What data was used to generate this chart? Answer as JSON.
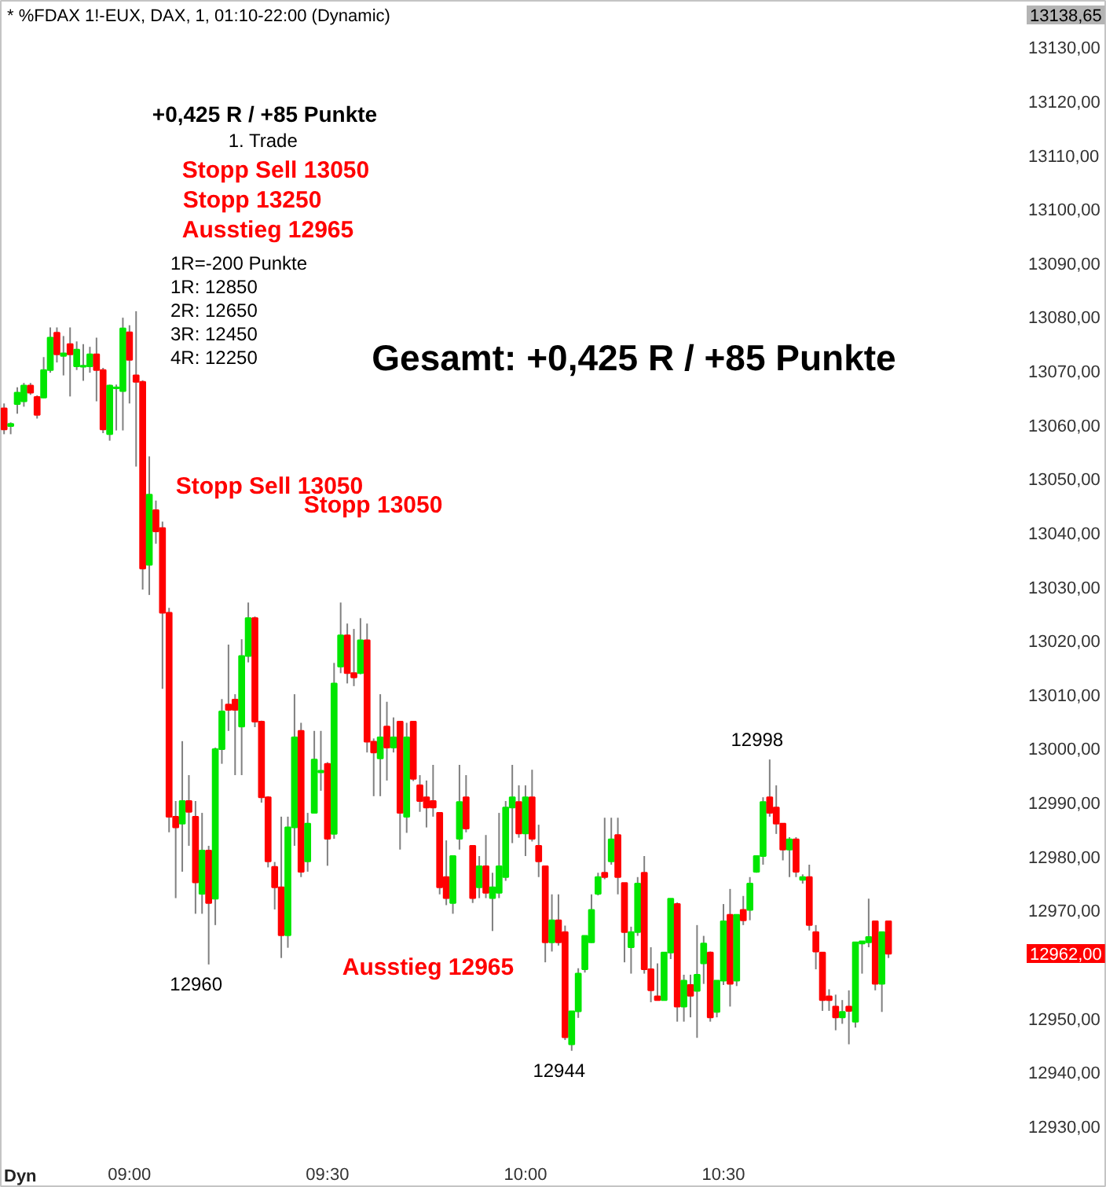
{
  "chart_data": {
    "type": "candlestick",
    "title": "* %FDAX 1!-EUX, DAX, 1, 01:10-22:00 (Dynamic)",
    "x": [
      8.6833,
      8.7,
      8.7167,
      8.7333,
      8.75,
      8.7667,
      8.7833,
      8.8,
      8.8167,
      8.8333,
      8.85,
      8.8667,
      8.8833,
      8.9,
      8.9167,
      8.9333,
      8.95,
      8.9667,
      8.9833,
      9,
      9.0167,
      9.0333,
      9.05,
      9.0667,
      9.0833,
      9.1,
      9.1167,
      9.1333,
      9.15,
      9.1667,
      9.1833,
      9.2,
      9.2167,
      9.2333,
      9.25,
      9.2667,
      9.2833,
      9.3,
      9.3167,
      9.3333,
      9.35,
      9.3667,
      9.3833,
      9.4,
      9.4167,
      9.4333,
      9.45,
      9.4667,
      9.4833,
      9.5,
      9.5167,
      9.5333,
      9.55,
      9.5667,
      9.5833,
      9.6,
      9.6167,
      9.6333,
      9.65,
      9.6667,
      9.6833,
      9.7,
      9.7167,
      9.7333,
      9.75,
      9.7667,
      9.7833,
      9.8,
      9.8167,
      9.8333,
      9.85,
      9.8667,
      9.8833,
      9.9,
      9.9167,
      9.9333,
      9.95,
      9.9667,
      9.9833,
      10,
      10.0167,
      10.0333,
      10.05,
      10.0667,
      10.0833,
      10.1,
      10.1167,
      10.1333,
      10.15,
      10.1667,
      10.1833,
      10.2,
      10.2167,
      10.2333,
      10.25,
      10.2667,
      10.2833,
      10.3,
      10.3167,
      10.3333,
      10.35,
      10.3667,
      10.3833,
      10.4,
      10.4167,
      10.4333,
      10.45,
      10.4667,
      10.4833,
      10.5,
      10.5167,
      10.5333,
      10.55,
      10.5667,
      10.5833,
      10.6,
      10.6167,
      10.6333,
      10.65,
      10.6667,
      10.6833,
      10.7,
      10.7167,
      10.7333,
      10.75,
      10.7667,
      10.7833,
      10.8,
      10.8167,
      10.8333,
      10.85,
      10.8667,
      10.8833,
      10.9,
      10.9167
    ],
    "ohlc": [
      [
        13063.1,
        13064.0,
        13058.3,
        13059.2
      ],
      [
        13059.8,
        13060.5,
        13058.3,
        13060.2
      ],
      [
        13063.9,
        13067.0,
        13062.1,
        13066.0
      ],
      [
        13064.4,
        13067.8,
        13063.4,
        13067.3
      ],
      [
        13067.3,
        13067.8,
        13065.6,
        13066.0
      ],
      [
        13065.2,
        13065.5,
        13061.2,
        13061.9
      ],
      [
        13065.1,
        13072.6,
        13065.0,
        13070.2
      ],
      [
        13070.2,
        13078.1,
        13069.7,
        13076.2
      ],
      [
        13077.1,
        13078.1,
        13071.6,
        13073.1
      ],
      [
        13072.8,
        13076.5,
        13069.2,
        13073.3
      ],
      [
        13075.0,
        13078.1,
        13065.3,
        13073.1
      ],
      [
        13070.9,
        13075.5,
        13070.2,
        13074.0
      ],
      [
        13070.8,
        13075.0,
        13068.2,
        13071.0
      ],
      [
        13070.9,
        13074.5,
        13069.7,
        13073.1
      ],
      [
        13073.1,
        13076.2,
        13064.4,
        13070.2
      ],
      [
        13070.2,
        13070.6,
        13058.5,
        13059.2
      ],
      [
        13058.3,
        13067.5,
        13057.1,
        13067.3
      ],
      [
        13066.8,
        13067.5,
        13059.0,
        13067.0
      ],
      [
        13066.3,
        13079.9,
        13059.0,
        13077.9
      ],
      [
        13077.2,
        13078.5,
        13064.0,
        13072.1
      ],
      [
        13069.2,
        13081.1,
        13052.3,
        13068.0
      ],
      [
        13068.0,
        13068.3,
        13029.5,
        13033.4
      ],
      [
        13034.1,
        13054.2,
        13028.5,
        13047.1
      ],
      [
        13044.2,
        13046.0,
        13038.0,
        13040.3
      ],
      [
        13040.9,
        13042.1,
        13011.1,
        13025.2
      ],
      [
        13025.2,
        13026.1,
        12984.5,
        12987.4
      ],
      [
        12987.4,
        12990.3,
        12972.3,
        12985.4
      ],
      [
        12986.1,
        13001.4,
        12977.2,
        12990.3
      ],
      [
        12990.3,
        12995.1,
        12982.0,
        12988.3
      ],
      [
        12987.4,
        12990.3,
        12969.4,
        12975.2
      ],
      [
        12973.1,
        12988.1,
        12969.4,
        12981.1
      ],
      [
        12981.1,
        12982.0,
        12960.0,
        12971.4
      ],
      [
        12972.2,
        13000.2,
        12967.3,
        12999.9
      ],
      [
        12999.9,
        13009.2,
        12997.2,
        13006.9
      ],
      [
        13008.2,
        13019.3,
        13003.3,
        13007.2
      ],
      [
        13009.1,
        13010.1,
        12995.1,
        13007.2
      ],
      [
        13004.1,
        13020.3,
        12995.1,
        13017.2
      ],
      [
        13017.2,
        13027.1,
        13016.0,
        13024.2
      ],
      [
        13024.2,
        13024.5,
        13004.0,
        13005.0
      ],
      [
        13005.0,
        13005.2,
        12990.0,
        12991.0
      ],
      [
        12991.0,
        12991.2,
        12978.0,
        12979.1
      ],
      [
        12978.1,
        12979.0,
        12970.2,
        12974.3
      ],
      [
        12974.3,
        12987.4,
        12961.2,
        12965.4
      ],
      [
        12965.4,
        12987.4,
        12963.1,
        12985.4
      ],
      [
        12985.4,
        13010.1,
        12982.0,
        13002.1
      ],
      [
        13003.3,
        13004.8,
        12976.2,
        12977.2
      ],
      [
        12979.1,
        12988.1,
        12977.2,
        12986.1
      ],
      [
        12988.1,
        13003.3,
        12988.0,
        12998.0
      ],
      [
        12995.6,
        13003.3,
        12992.2,
        12995.9
      ],
      [
        12997.2,
        12997.5,
        12978.3,
        12983.3
      ],
      [
        12984.2,
        13015.9,
        12983.3,
        13012.1
      ],
      [
        13015.2,
        13027.1,
        13014.0,
        13021.0
      ],
      [
        13021.0,
        13023.2,
        13012.1,
        13014.0
      ],
      [
        13014.0,
        13022.2,
        13011.6,
        13013.2
      ],
      [
        13014.0,
        13024.2,
        13013.8,
        13020.1
      ],
      [
        13020.1,
        13023.2,
        12999.3,
        13001.3
      ],
      [
        13001.3,
        13001.9,
        12991.2,
        12999.3
      ],
      [
        12998.2,
        13010.1,
        12991.2,
        13002.1
      ],
      [
        13004.1,
        13008.7,
        12994.1,
        13000.2
      ],
      [
        13000.2,
        13005.8,
        12999.3,
        13002.1
      ],
      [
        13005.0,
        13005.0,
        12981.3,
        12988.1
      ],
      [
        12987.4,
        13004.8,
        12984.4,
        13002.1
      ],
      [
        13005.0,
        13005.0,
        12994.0,
        12994.4
      ],
      [
        12993.2,
        12995.1,
        12988.3,
        12990.3
      ],
      [
        12991.0,
        12994.1,
        12985.4,
        12989.1
      ],
      [
        12990.3,
        12997.0,
        12987.4,
        12989.1
      ],
      [
        12988.1,
        12988.1,
        12973.0,
        12974.3
      ],
      [
        12976.2,
        12983.0,
        12971.0,
        12972.3
      ],
      [
        12971.4,
        12980.1,
        12969.4,
        12980.1
      ],
      [
        12983.3,
        12997.0,
        12981.3,
        12990.1
      ],
      [
        12991.0,
        12995.1,
        12984.5,
        12985.2
      ],
      [
        12982.0,
        12982.0,
        12971.4,
        12972.3
      ],
      [
        12974.3,
        12980.1,
        12972.3,
        12978.2
      ],
      [
        12978.2,
        12984.0,
        12972.3,
        12973.3
      ],
      [
        12972.3,
        12977.0,
        12966.2,
        12974.3
      ],
      [
        12973.3,
        12988.1,
        12972.3,
        12978.2
      ],
      [
        12976.2,
        12990.3,
        12975.5,
        12989.1
      ],
      [
        12989.1,
        12997.0,
        12982.5,
        12991.0
      ],
      [
        12990.1,
        12993.2,
        12983.5,
        12984.3
      ],
      [
        12984.3,
        12993.2,
        12980.1,
        12991.0
      ],
      [
        12991.0,
        12996.1,
        12982.8,
        12983.3
      ],
      [
        12982.0,
        12985.9,
        12976.2,
        12979.1
      ],
      [
        12978.2,
        12978.2,
        12960.4,
        12964.1
      ],
      [
        12964.1,
        12973.0,
        12962.4,
        12968.2
      ],
      [
        12968.2,
        12973.0,
        12963.5,
        12964.1
      ],
      [
        12966.0,
        12967.2,
        12946.0,
        12946.5
      ],
      [
        12945.2,
        12951.3,
        12944.0,
        12951.3
      ],
      [
        12951.3,
        12959.3,
        12950.1,
        12958.3
      ],
      [
        12959.1,
        12965.3,
        12958.5,
        12965.3
      ],
      [
        12964.1,
        12973.0,
        12964.0,
        12970.1
      ],
      [
        12973.1,
        12977.0,
        12972.8,
        12976.2
      ],
      [
        12977.0,
        12987.2,
        12975.8,
        12976.2
      ],
      [
        12979.1,
        12987.2,
        12978.5,
        12983.2
      ],
      [
        12984.0,
        12987.2,
        12973.0,
        12976.2
      ],
      [
        12975.1,
        12975.1,
        12960.4,
        12966.0
      ],
      [
        12963.2,
        12967.0,
        12958.3,
        12966.0
      ],
      [
        12966.0,
        12976.2,
        12965.3,
        12975.0
      ],
      [
        12977.0,
        12980.1,
        12958.3,
        12959.1
      ],
      [
        12959.1,
        12963.2,
        12953.0,
        12955.2
      ],
      [
        12954.1,
        12960.2,
        12953.4,
        12953.4
      ],
      [
        12953.4,
        12962.2,
        12953.4,
        12962.2
      ],
      [
        12962.2,
        12972.2,
        12961.0,
        12972.2
      ],
      [
        12971.2,
        12971.5,
        12949.4,
        12952.2
      ],
      [
        12952.2,
        12958.1,
        12949.4,
        12957.0
      ],
      [
        12956.2,
        12958.1,
        12950.2,
        12954.2
      ],
      [
        12955.1,
        12967.3,
        12946.4,
        12958.1
      ],
      [
        12960.2,
        12965.3,
        12956.4,
        12963.9
      ],
      [
        12962.2,
        12962.4,
        12949.4,
        12950.2
      ],
      [
        12951.2,
        12957.0,
        12950.2,
        12957.0
      ],
      [
        12957.0,
        12971.2,
        12956.2,
        12968.0
      ],
      [
        12969.2,
        12974.0,
        12952.2,
        12956.4
      ],
      [
        12957.0,
        12969.2,
        12956.0,
        12969.2
      ],
      [
        12970.1,
        12972.7,
        12967.3,
        12968.2
      ],
      [
        12970.1,
        12976.2,
        12968.2,
        12975.0
      ],
      [
        12977.2,
        12980.1,
        12977.0,
        12980.1
      ],
      [
        12980.1,
        12991.0,
        12978.5,
        12990.1
      ],
      [
        12991.0,
        12998.0,
        12987.4,
        12988.1
      ],
      [
        12989.1,
        12993.2,
        12984.2,
        12986.1
      ],
      [
        12986.1,
        12986.1,
        12979.3,
        12981.3
      ],
      [
        12981.3,
        12983.6,
        12976.2,
        12983.2
      ],
      [
        12983.2,
        12983.6,
        12976.2,
        12977.2
      ],
      [
        12975.7,
        12976.7,
        12975.0,
        12976.2
      ],
      [
        12976.2,
        12978.5,
        12966.3,
        12967.3
      ],
      [
        12966.0,
        12967.3,
        12959.1,
        12962.4
      ],
      [
        12962.2,
        12962.2,
        12951.4,
        12953.4
      ],
      [
        12954.1,
        12955.4,
        12951.4,
        12953.4
      ],
      [
        12952.2,
        12954.4,
        12947.8,
        12950.2
      ],
      [
        12950.2,
        12953.4,
        12949.0,
        12951.2
      ],
      [
        12952.2,
        12955.2,
        12945.2,
        12951.4
      ],
      [
        12949.4,
        12964.1,
        12948.3,
        12964.1
      ],
      [
        12963.9,
        12964.3,
        12958.3,
        12964.3
      ],
      [
        12964.1,
        12972.2,
        12963.2,
        12965.1
      ],
      [
        12968.0,
        12968.0,
        12955.2,
        12956.4
      ],
      [
        12956.4,
        12966.0,
        12951.2,
        12966.0
      ],
      [
        12968.0,
        12968.0,
        12961.2,
        12962.0
      ]
    ],
    "colors": [
      "#ff0000",
      "#00e600",
      "#00e600",
      "#00e600",
      "#ff0000",
      "#ff0000",
      "#00e600",
      "#00e600",
      "#ff0000",
      "#00e600",
      "#ff0000",
      "#00e600",
      "#00e600",
      "#00e600",
      "#ff0000",
      "#ff0000",
      "#00e600",
      "#00e600",
      "#00e600",
      "#ff0000",
      "#ff0000",
      "#ff0000",
      "#00e600",
      "#ff0000",
      "#ff0000",
      "#ff0000",
      "#ff0000",
      "#00e600",
      "#ff0000",
      "#ff0000",
      "#00e600",
      "#ff0000",
      "#00e600",
      "#00e600",
      "#ff0000",
      "#ff0000",
      "#00e600",
      "#00e600",
      "#ff0000",
      "#ff0000",
      "#ff0000",
      "#ff0000",
      "#ff0000",
      "#00e600",
      "#00e600",
      "#ff0000",
      "#00e600",
      "#00e600",
      "#00e600",
      "#ff0000",
      "#00e600",
      "#00e600",
      "#ff0000",
      "#ff0000",
      "#00e600",
      "#ff0000",
      "#ff0000",
      "#00e600",
      "#ff0000",
      "#00e600",
      "#ff0000",
      "#00e600",
      "#ff0000",
      "#ff0000",
      "#ff0000",
      "#ff0000",
      "#ff0000",
      "#ff0000",
      "#00e600",
      "#00e600",
      "#ff0000",
      "#ff0000",
      "#00e600",
      "#ff0000",
      "#00e600",
      "#00e600",
      "#00e600",
      "#00e600",
      "#ff0000",
      "#00e600",
      "#ff0000",
      "#ff0000",
      "#ff0000",
      "#00e600",
      "#ff0000",
      "#ff0000",
      "#00e600",
      "#00e600",
      "#00e600",
      "#00e600",
      "#00e600",
      "#ff0000",
      "#00e600",
      "#ff0000",
      "#ff0000",
      "#00e600",
      "#00e600",
      "#ff0000",
      "#ff0000",
      "#ff0000",
      "#00e600",
      "#00e600",
      "#ff0000",
      "#00e600",
      "#ff0000",
      "#00e600",
      "#00e600",
      "#ff0000",
      "#00e600",
      "#00e600",
      "#ff0000",
      "#00e600",
      "#ff0000",
      "#00e600",
      "#00e600",
      "#00e600",
      "#ff0000",
      "#ff0000",
      "#ff0000",
      "#00e600",
      "#ff0000",
      "#00e600",
      "#ff0000",
      "#ff0000",
      "#ff0000",
      "#ff0000",
      "#ff0000",
      "#00e600",
      "#ff0000",
      "#00e600",
      "#00e600",
      "#00e600",
      "#ff0000",
      "#00e600",
      "#ff0000"
    ],
    "xlim": [
      8.675,
      11.468
    ],
    "xticks": [
      {
        "value": 9,
        "label": "09:00"
      },
      {
        "value": 9.5,
        "label": "09:30"
      },
      {
        "value": 10,
        "label": "10:00"
      },
      {
        "value": 10.5,
        "label": "10:30"
      }
    ],
    "ylim": [
      12918.6,
      13138.65
    ],
    "yticks": [
      {
        "value": 12930,
        "label": "12930,00"
      },
      {
        "value": 12940,
        "label": "12940,00"
      },
      {
        "value": 12950,
        "label": "12950,00"
      },
      {
        "value": 12970,
        "label": "12970,00"
      },
      {
        "value": 12980,
        "label": "12980,00"
      },
      {
        "value": 12990,
        "label": "12990,00"
      },
      {
        "value": 13000,
        "label": "13000,00"
      },
      {
        "value": 13010,
        "label": "13010,00"
      },
      {
        "value": 13020,
        "label": "13020,00"
      },
      {
        "value": 13030,
        "label": "13030,00"
      },
      {
        "value": 13040,
        "label": "13040,00"
      },
      {
        "value": 13050,
        "label": "13050,00"
      },
      {
        "value": 13060,
        "label": "13060,00"
      },
      {
        "value": 13070,
        "label": "13070,00"
      },
      {
        "value": 13080,
        "label": "13080,00"
      },
      {
        "value": 13090,
        "label": "13090,00"
      },
      {
        "value": 13100,
        "label": "13100,00"
      },
      {
        "value": 13110,
        "label": "13110,00"
      },
      {
        "value": 13120,
        "label": "13120,00"
      },
      {
        "value": 13130,
        "label": "13130,00"
      }
    ],
    "annotations": [
      "+0,425 R / +85 Punkte",
      "1. Trade",
      "Stopp Sell 13050",
      "Stopp 13250",
      "Ausstieg 12965",
      "1R=-200 Punkte",
      "1R: 12850",
      "2R: 12650",
      "3R: 12450",
      "4R: 12250",
      "Gesamt: +0,425 R / +85 Punkte",
      "Dyn",
      "Stopp Sell 13050",
      "Stopp 13050",
      "Ausstieg 12965",
      "13138,65",
      "12962,00",
      {
        "text": "12960",
        "x": 9.2,
        "y": 12960
      },
      {
        "text": "12944",
        "x": 10.1167,
        "y": 12944
      },
      {
        "text": "12998",
        "x": 10.6167,
        "y": 12998
      }
    ]
  }
}
